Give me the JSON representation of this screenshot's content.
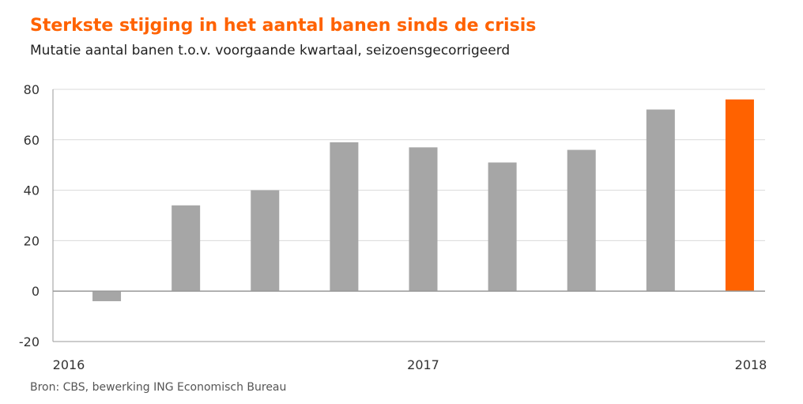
{
  "header": {
    "title": "Sterkste stijging in het aantal banen sinds de crisis",
    "subtitle": "Mutatie aantal banen t.o.v. voorgaande kwartaal, seizoensgecorrigeerd"
  },
  "footer": {
    "source": "Bron: CBS, bewerking ING Economisch Bureau"
  },
  "colors": {
    "bar": "#a6a6a6",
    "highlight": "#ff6200",
    "title": "#ff6200",
    "axis": "#9a9a9a",
    "grid": "#d9d9d9"
  },
  "chart_data": {
    "type": "bar",
    "title": "Sterkste stijging in het aantal banen sinds de crisis",
    "subtitle": "Mutatie aantal banen t.o.v. voorgaande kwartaal, seizoensgecorrigeerd",
    "xlabel": "",
    "ylabel": "",
    "categories": [
      "2016 Q1",
      "2016 Q2",
      "2016 Q3",
      "2016 Q4",
      "2017 Q1",
      "2017 Q2",
      "2017 Q3",
      "2017 Q4",
      "2018 Q1"
    ],
    "values": [
      -4,
      34,
      40,
      59,
      57,
      51,
      56,
      72,
      76
    ],
    "highlight_index": 8,
    "x_tick_labels": [
      {
        "label": "2016",
        "category": "2016 Q1"
      },
      {
        "label": "2017",
        "category": "2017 Q1"
      },
      {
        "label": "2018",
        "category": "2018 Q1"
      }
    ],
    "y_ticks": [
      -20,
      0,
      20,
      40,
      60,
      80
    ],
    "ylim": [
      -20,
      80
    ],
    "grid": true,
    "legend": "none"
  }
}
